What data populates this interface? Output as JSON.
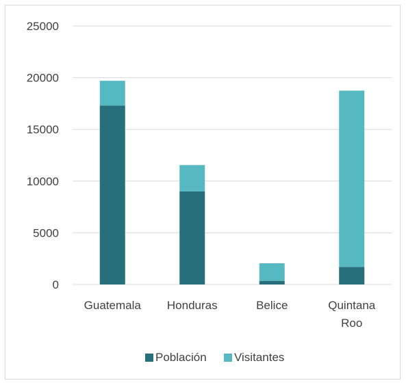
{
  "chart_data": {
    "type": "bar",
    "stacked": true,
    "categories": [
      [
        "Guatemala"
      ],
      [
        "Honduras"
      ],
      [
        "Belice"
      ],
      [
        "Quintana",
        "Roo"
      ]
    ],
    "series": [
      {
        "name": "Población",
        "values": [
          17300,
          9000,
          350,
          1700
        ],
        "color": "#276f7b"
      },
      {
        "name": "Visitantes",
        "values": [
          2400,
          2550,
          1700,
          17050
        ],
        "color": "#56b8c0"
      }
    ],
    "ylim": [
      0,
      25000
    ],
    "yticks": [
      0,
      5000,
      10000,
      15000,
      20000,
      25000
    ],
    "grid": true,
    "legend": "bottom",
    "gridline_color": "#d9d9d9",
    "text_color": "#404040"
  }
}
